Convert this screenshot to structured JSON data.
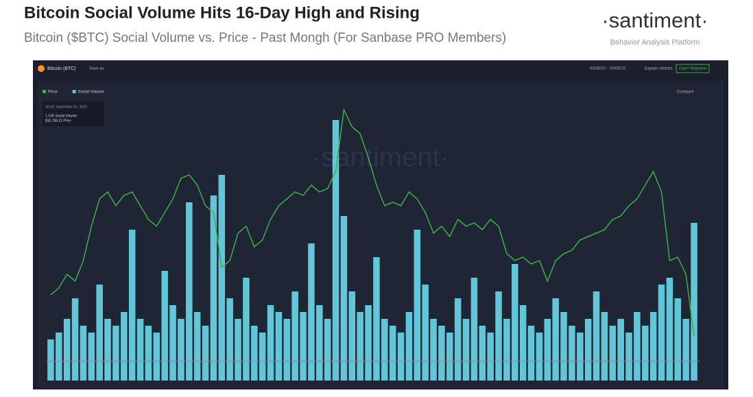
{
  "header": {
    "title": "Bitcoin Social Volume Hits 16-Day High and Rising",
    "subtitle": "Bitcoin ($BTC) Social Volume vs. Price - Past Mongh (For Sanbase PRO Members)",
    "brand": "·santiment·",
    "tagline": "Behavior Analysis Platform"
  },
  "toolbar": {
    "asset": "Bitcoin (BTC)",
    "save": "Save as",
    "range": "03/08/20 - 03/09/20",
    "explain": "Explain metrics",
    "open": "Open Mapview",
    "compare": "Compare"
  },
  "tooltip": {
    "date": "09:00, September 02, 2020",
    "volume": "1.13K Social Volume",
    "price": "$10,784.21 Price"
  },
  "chart_data": {
    "type": "combo",
    "watermark": "·santiment·",
    "ylim": [
      0,
      4050
    ],
    "y2lim": [
      9800,
      12635
    ],
    "series": [
      {
        "name": "Price",
        "type": "line",
        "axis": "y2",
        "color": "#3fae49",
        "values": [
          10675,
          10745,
          10885,
          10815,
          11025,
          11375,
          11655,
          11725,
          11585,
          11690,
          11725,
          11585,
          11445,
          11375,
          11515,
          11655,
          11865,
          11900,
          11795,
          11585,
          11515,
          10955,
          11025,
          11305,
          11375,
          11165,
          11235,
          11445,
          11585,
          11655,
          11725,
          11690,
          11795,
          11725,
          11760,
          11935,
          12565,
          12390,
          12320,
          12075,
          11795,
          11585,
          11620,
          11585,
          11725,
          11655,
          11515,
          11305,
          11375,
          11270,
          11445,
          11375,
          11410,
          11340,
          11445,
          11375,
          11095,
          11025,
          11060,
          10990,
          11025,
          10815,
          11025,
          11095,
          11130,
          11235,
          11270,
          11305,
          11340,
          11445,
          11480,
          11585,
          11655,
          11795,
          11935,
          11725,
          11025,
          11060,
          10885,
          10255
        ]
      },
      {
        "name": "Social Volume",
        "type": "bar",
        "color": "#63c6d8",
        "values": [
          600,
          700,
          900,
          1200,
          800,
          700,
          1400,
          900,
          800,
          1000,
          2200,
          900,
          800,
          700,
          1600,
          1100,
          900,
          2600,
          1000,
          800,
          2700,
          3000,
          1200,
          900,
          1500,
          800,
          700,
          1100,
          1000,
          900,
          1300,
          1000,
          2000,
          1100,
          900,
          3800,
          2400,
          1300,
          1000,
          1100,
          1800,
          900,
          800,
          700,
          1000,
          2200,
          1400,
          900,
          800,
          700,
          1200,
          900,
          1500,
          800,
          700,
          1300,
          900,
          1700,
          1100,
          800,
          700,
          900,
          1200,
          1000,
          800,
          700,
          900,
          1300,
          1000,
          800,
          900,
          700,
          1000,
          800,
          1000,
          1400,
          1500,
          1200,
          900,
          2300
        ]
      }
    ]
  }
}
